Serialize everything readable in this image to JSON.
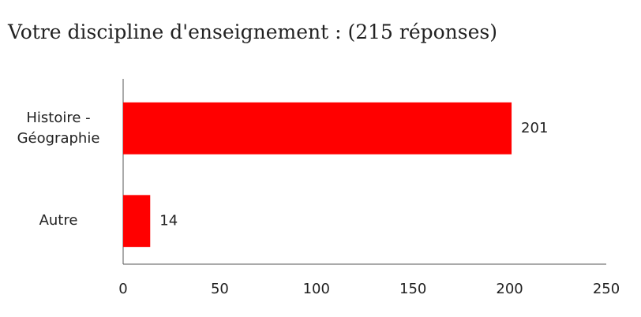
{
  "chart_data": {
    "type": "hbar",
    "title": "Votre discipline d'enseignement : (215 réponses)",
    "categories": [
      "Histoire - Géographie",
      "Autre"
    ],
    "values": [
      201,
      14
    ],
    "color": "#ff0000",
    "xlim": [
      0,
      250
    ],
    "xticks": [
      0,
      50,
      100,
      150,
      200,
      250
    ],
    "grid": false
  }
}
